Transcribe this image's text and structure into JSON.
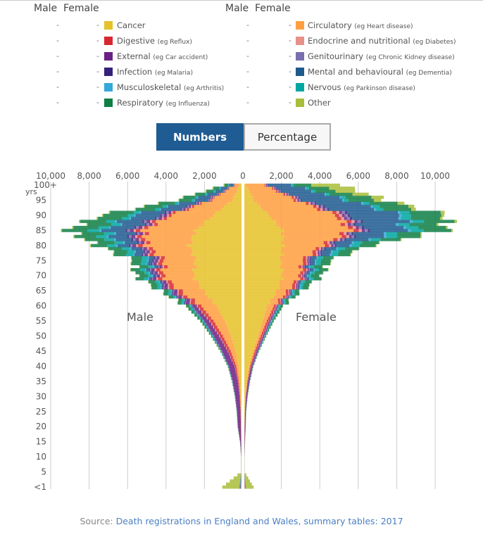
{
  "legend": {
    "male_header": "Male",
    "female_header": "Female",
    "dash": "-",
    "items": [
      {
        "name": "Cancer",
        "eg": "",
        "color": "#e6c229"
      },
      {
        "name": "Digestive",
        "eg": "(eg Reflux)",
        "color": "#d7282f"
      },
      {
        "name": "External",
        "eg": "(eg Car accident)",
        "color": "#6b2085"
      },
      {
        "name": "Infection",
        "eg": "(eg Malaria)",
        "color": "#35227a"
      },
      {
        "name": "Musculoskeletal",
        "eg": "(eg Arthritis)",
        "color": "#33a8d9"
      },
      {
        "name": "Respiratory",
        "eg": "(eg Influenza)",
        "color": "#0f7f45"
      },
      {
        "name": "Circulatory",
        "eg": "(eg Heart disease)",
        "color": "#ff9f3f"
      },
      {
        "name": "Endocrine and nutritional",
        "eg": "(eg Diabetes)",
        "color": "#e8918a"
      },
      {
        "name": "Genitourinary",
        "eg": "(eg Chronic Kidney disease)",
        "color": "#7a6fae"
      },
      {
        "name": "Mental and behavioural",
        "eg": "(eg Dementia)",
        "color": "#1f5a8f"
      },
      {
        "name": "Nervous",
        "eg": "(eg Parkinson disease)",
        "color": "#00a6a0"
      },
      {
        "name": "Other",
        "eg": "",
        "color": "#aabd3a"
      }
    ]
  },
  "toggle": {
    "numbers": "Numbers",
    "percentage": "Percentage",
    "active": "numbers"
  },
  "source": {
    "prefix": "Source: ",
    "link": "Death registrations in England and Wales, summary tables: 2017"
  },
  "chart_data": {
    "type": "bar",
    "subtype": "stacked population pyramid",
    "male_label": "Male",
    "female_label": "Female",
    "x_ticks_left": [
      "10,000",
      "8,000",
      "6,000",
      "4,000",
      "2,000",
      "0"
    ],
    "x_ticks_right": [
      "2,000",
      "4,000",
      "6,000",
      "8,000",
      "10,000"
    ],
    "x_tick_values": [
      0,
      2000,
      4000,
      6000,
      8000,
      10000
    ],
    "xlim": [
      0,
      11000
    ],
    "y_ticks": [
      "<1",
      "5",
      "10",
      "15",
      "20",
      "25",
      "30",
      "35",
      "40",
      "45",
      "50",
      "55",
      "60",
      "65",
      "70",
      "75",
      "80",
      "85",
      "90",
      "95",
      "100+"
    ],
    "y_unit": "yrs",
    "grid": "vertical",
    "categories": [
      "Cancer",
      "Circulatory",
      "Digestive",
      "Endocrine and nutritional",
      "External",
      "Genitourinary",
      "Infection",
      "Mental and behavioural",
      "Musculoskeletal",
      "Nervous",
      "Respiratory",
      "Other"
    ],
    "colors": [
      "#e6c229",
      "#ff9f3f",
      "#d7282f",
      "#e8918a",
      "#6b2085",
      "#7a6fae",
      "#35227a",
      "#1f5a8f",
      "#33a8d9",
      "#00a6a0",
      "#0f7f45",
      "#aabd3a"
    ],
    "ages": [
      0,
      5,
      10,
      15,
      20,
      25,
      30,
      35,
      40,
      45,
      50,
      55,
      60,
      65,
      70,
      75,
      80,
      85,
      90,
      95,
      100
    ],
    "male": [
      [
        10,
        10,
        5,
        5,
        20,
        0,
        20,
        0,
        0,
        30,
        20,
        880
      ],
      [
        6,
        1,
        0,
        1,
        5,
        0,
        1,
        0,
        0,
        3,
        1,
        2
      ],
      [
        6,
        1,
        0,
        1,
        6,
        0,
        1,
        0,
        0,
        3,
        1,
        2
      ],
      [
        10,
        4,
        1,
        2,
        50,
        0,
        2,
        0,
        1,
        5,
        2,
        3
      ],
      [
        20,
        8,
        2,
        3,
        150,
        1,
        3,
        2,
        1,
        8,
        3,
        4
      ],
      [
        25,
        15,
        5,
        4,
        180,
        1,
        4,
        3,
        2,
        8,
        4,
        4
      ],
      [
        45,
        30,
        15,
        6,
        220,
        2,
        6,
        5,
        3,
        10,
        6,
        5
      ],
      [
        80,
        60,
        40,
        10,
        260,
        3,
        10,
        8,
        4,
        12,
        10,
        6
      ],
      [
        150,
        120,
        80,
        15,
        280,
        5,
        15,
        10,
        5,
        15,
        15,
        8
      ],
      [
        300,
        260,
        130,
        25,
        280,
        8,
        20,
        15,
        8,
        25,
        25,
        10
      ],
      [
        550,
        420,
        160,
        35,
        260,
        12,
        25,
        15,
        10,
        40,
        50,
        12
      ],
      [
        850,
        600,
        180,
        45,
        230,
        18,
        30,
        20,
        15,
        60,
        90,
        15
      ],
      [
        1300,
        800,
        200,
        55,
        200,
        25,
        35,
        25,
        20,
        90,
        160,
        18
      ],
      [
        2000,
        1200,
        230,
        70,
        180,
        40,
        45,
        40,
        30,
        140,
        260,
        25
      ],
      [
        2500,
        1600,
        220,
        80,
        170,
        60,
        60,
        90,
        45,
        220,
        450,
        30
      ],
      [
        2400,
        1600,
        200,
        80,
        150,
        70,
        70,
        200,
        50,
        300,
        500,
        30
      ],
      [
        2700,
        2200,
        230,
        100,
        180,
        100,
        90,
        550,
        70,
        450,
        800,
        40
      ],
      [
        2400,
        2700,
        220,
        110,
        200,
        130,
        100,
        1200,
        80,
        600,
        1300,
        60
      ],
      [
        1500,
        2200,
        150,
        90,
        160,
        120,
        90,
        1300,
        60,
        350,
        1300,
        60
      ],
      [
        500,
        1100,
        60,
        40,
        60,
        60,
        40,
        700,
        30,
        120,
        700,
        40
      ],
      [
        100,
        250,
        15,
        10,
        20,
        20,
        10,
        220,
        10,
        30,
        200,
        50
      ]
    ],
    "female": [
      [
        8,
        8,
        4,
        4,
        10,
        0,
        15,
        0,
        0,
        20,
        15,
        400
      ],
      [
        5,
        1,
        0,
        1,
        3,
        0,
        1,
        0,
        0,
        2,
        1,
        1
      ],
      [
        5,
        1,
        0,
        1,
        3,
        0,
        1,
        0,
        0,
        2,
        1,
        1
      ],
      [
        8,
        2,
        1,
        1,
        20,
        0,
        1,
        0,
        1,
        3,
        1,
        2
      ],
      [
        12,
        4,
        2,
        2,
        40,
        1,
        2,
        1,
        1,
        5,
        2,
        3
      ],
      [
        25,
        6,
        4,
        3,
        40,
        1,
        3,
        2,
        2,
        6,
        3,
        3
      ],
      [
        60,
        15,
        10,
        4,
        60,
        2,
        4,
        3,
        3,
        8,
        5,
        4
      ],
      [
        130,
        30,
        25,
        6,
        70,
        3,
        6,
        4,
        4,
        10,
        8,
        5
      ],
      [
        250,
        50,
        45,
        10,
        70,
        4,
        8,
        5,
        5,
        12,
        12,
        6
      ],
      [
        450,
        90,
        70,
        15,
        70,
        6,
        12,
        8,
        8,
        15,
        20,
        8
      ],
      [
        700,
        150,
        90,
        20,
        65,
        10,
        15,
        10,
        12,
        25,
        35,
        10
      ],
      [
        950,
        220,
        100,
        25,
        55,
        15,
        20,
        15,
        18,
        40,
        70,
        12
      ],
      [
        1200,
        350,
        110,
        35,
        50,
        20,
        25,
        20,
        25,
        60,
        130,
        15
      ],
      [
        1700,
        560,
        140,
        50,
        55,
        30,
        35,
        40,
        35,
        100,
        250,
        20
      ],
      [
        2000,
        900,
        160,
        60,
        60,
        45,
        50,
        100,
        50,
        180,
        420,
        25
      ],
      [
        1900,
        1100,
        160,
        70,
        60,
        55,
        60,
        220,
        60,
        250,
        500,
        30
      ],
      [
        2000,
        2000,
        200,
        110,
        90,
        90,
        80,
        650,
        100,
        400,
        800,
        40
      ],
      [
        2000,
        3500,
        260,
        160,
        150,
        150,
        120,
        1900,
        140,
        650,
        1400,
        70
      ],
      [
        1300,
        3500,
        220,
        150,
        150,
        160,
        120,
        2600,
        130,
        500,
        1600,
        150
      ],
      [
        500,
        2200,
        120,
        90,
        80,
        100,
        70,
        2200,
        80,
        250,
        1400,
        400
      ],
      [
        100,
        950,
        40,
        40,
        40,
        40,
        30,
        1200,
        40,
        100,
        900,
        1500
      ]
    ]
  }
}
